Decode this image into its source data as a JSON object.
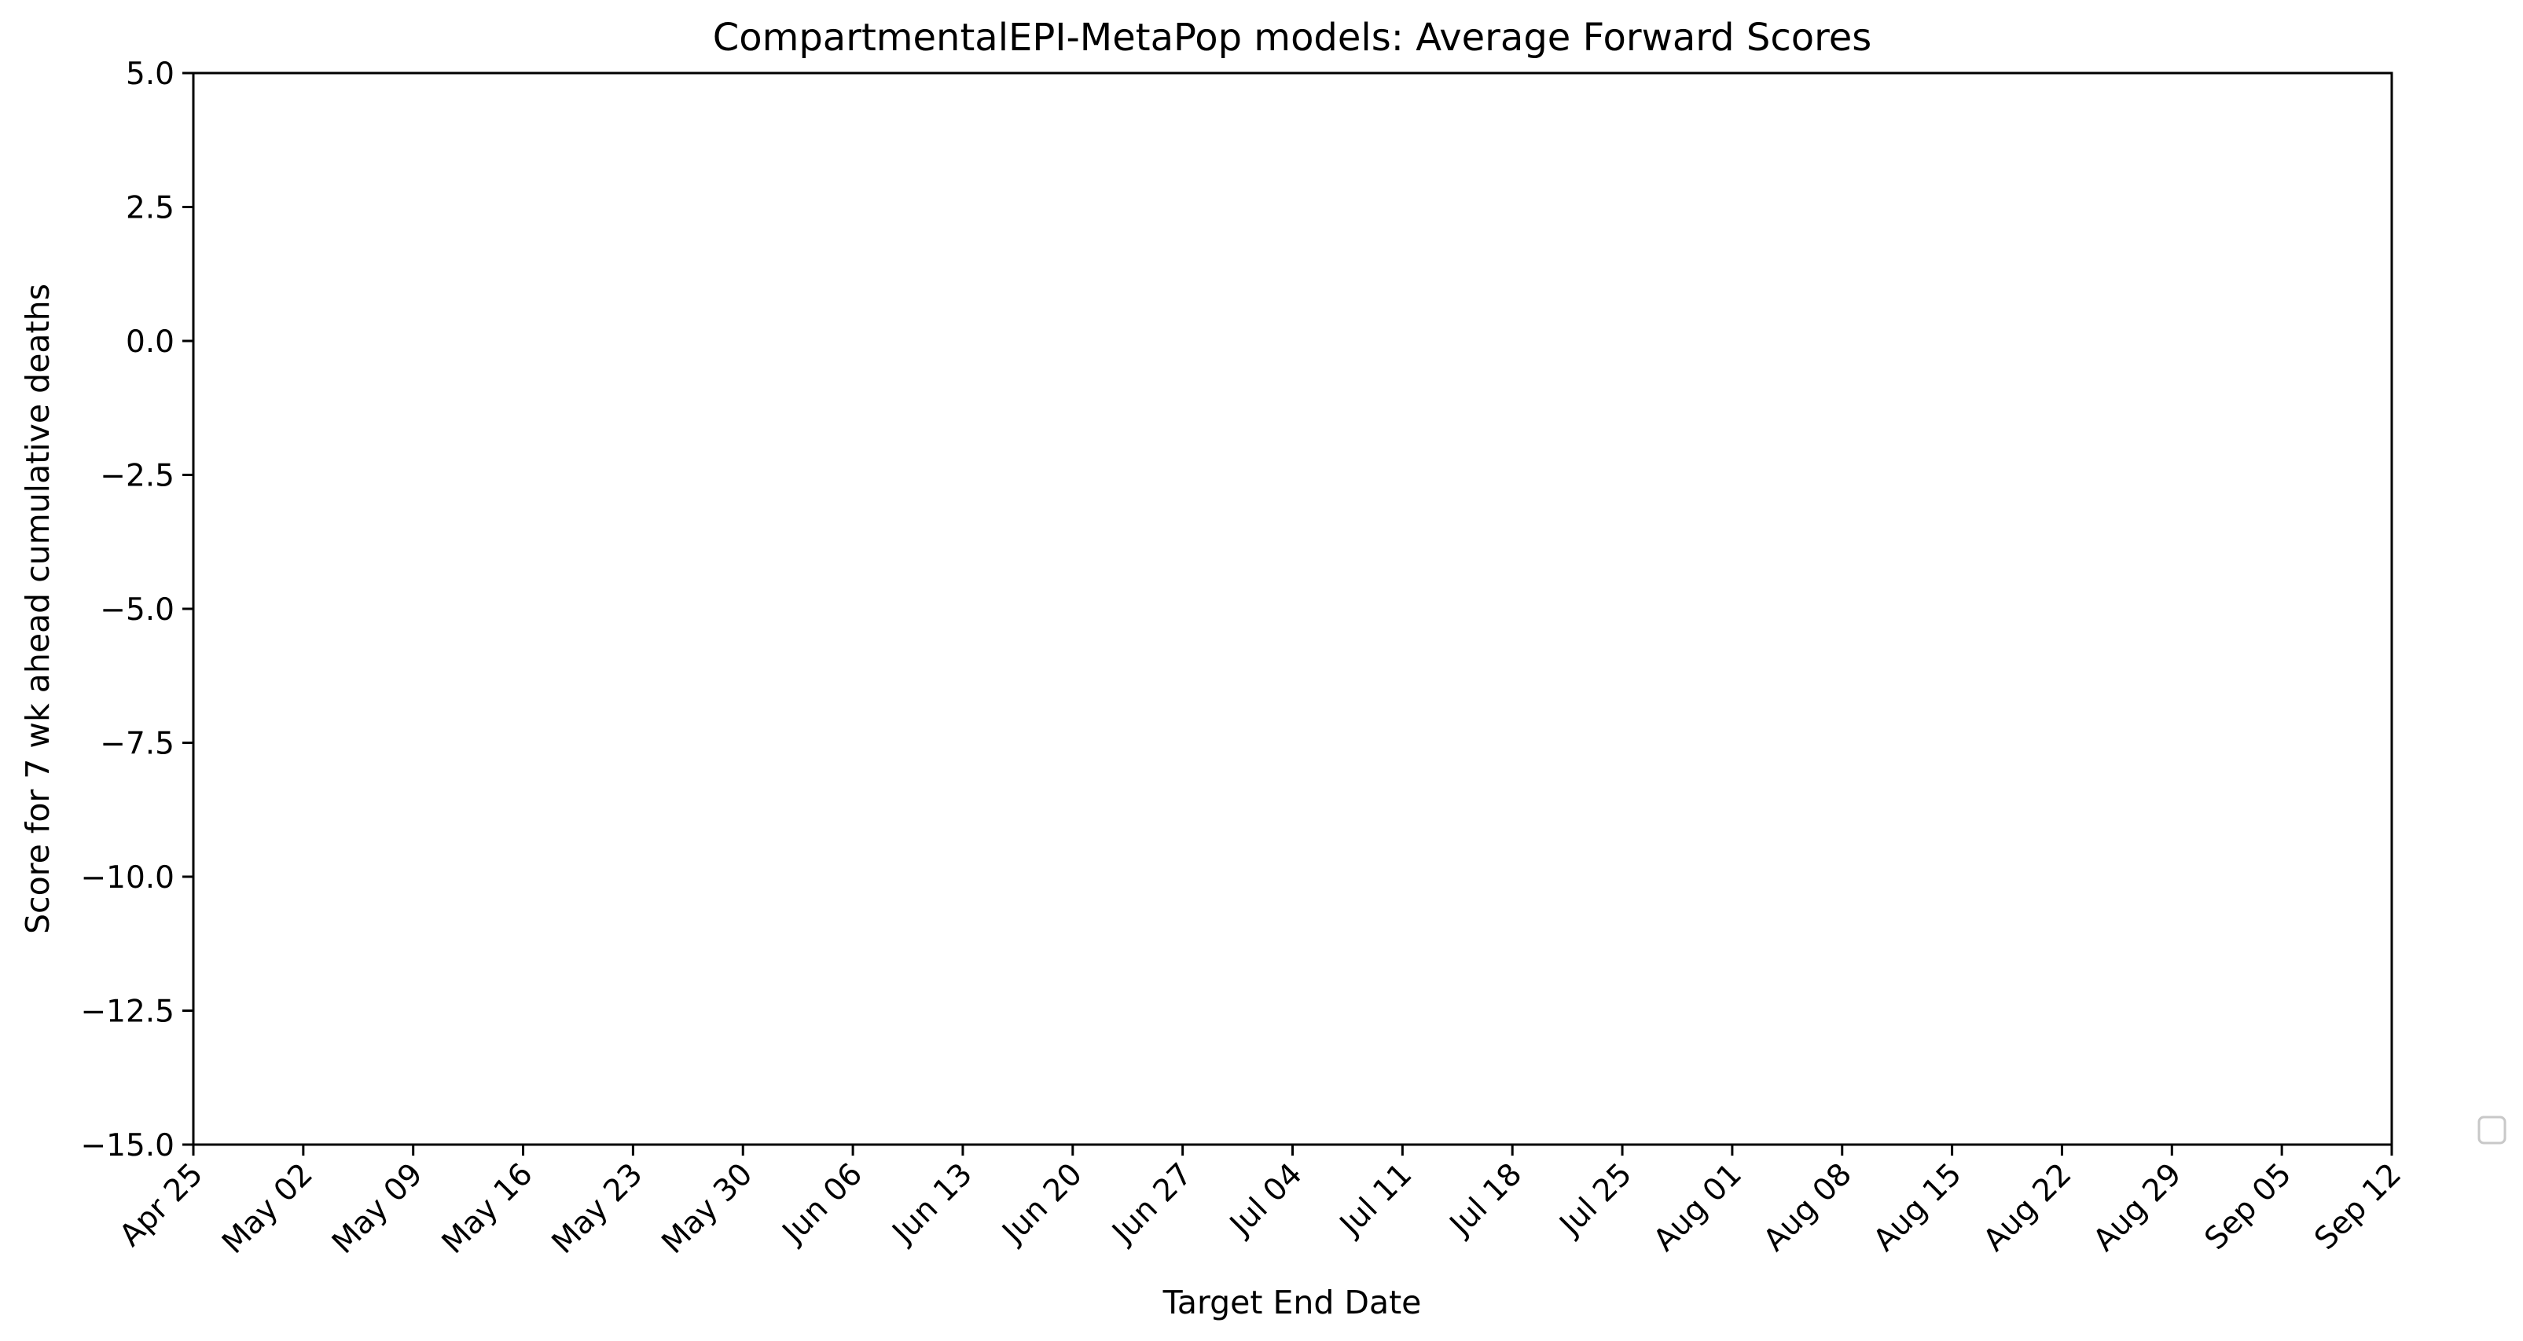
{
  "chart_data": {
    "type": "line",
    "title": "CompartmentalEPI-MetaPop models: Average Forward Scores",
    "xlabel": "Target End Date",
    "ylabel": "Score for 7 wk ahead cumulative deaths",
    "ylim": [
      -15.0,
      5.0
    ],
    "yticks": [
      5.0,
      2.5,
      0.0,
      -2.5,
      -5.0,
      -7.5,
      -10.0,
      -12.5,
      -15.0
    ],
    "ytick_labels": [
      "5.0",
      "2.5",
      "0.0",
      "−2.5",
      "−5.0",
      "−7.5",
      "−10.0",
      "−12.5",
      "−15.0"
    ],
    "x_tick_labels": [
      "Apr 25",
      "May 02",
      "May 09",
      "May 16",
      "May 23",
      "May 30",
      "Jun 06",
      "Jun 13",
      "Jun 20",
      "Jun 27",
      "Jul 04",
      "Jul 11",
      "Jul 18",
      "Jul 25",
      "Aug 01",
      "Aug 08",
      "Aug 15",
      "Aug 22",
      "Aug 29",
      "Sep 05",
      "Sep 12"
    ],
    "series": [],
    "grid": false,
    "legend": "right, outside plot (empty)"
  }
}
